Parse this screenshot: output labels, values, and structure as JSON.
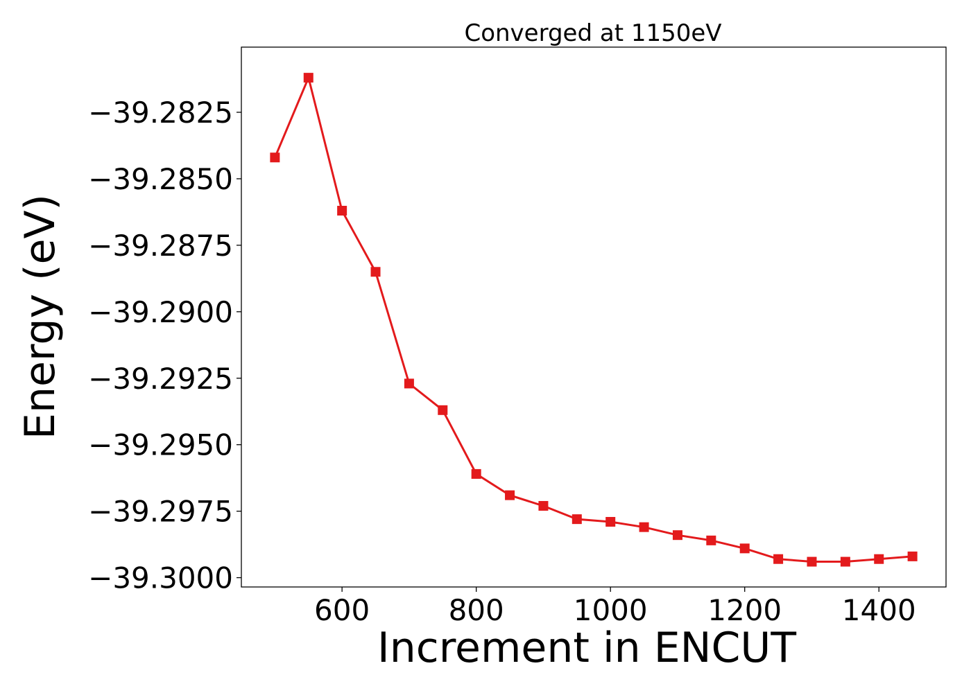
{
  "chart_data": {
    "type": "line",
    "title": "Converged at 1150eV",
    "xlabel": "Increment in ENCUT",
    "ylabel": "Energy (eV)",
    "xlim": [
      450,
      1500
    ],
    "ylim": [
      -39.30035,
      -39.28005
    ],
    "xticks": [
      600,
      800,
      1000,
      1200,
      1400
    ],
    "yticks": [
      -39.2825,
      -39.285,
      -39.2875,
      -39.29,
      -39.2925,
      -39.295,
      -39.2975,
      -39.3
    ],
    "xtick_labels": [
      "600",
      "800",
      "1000",
      "1200",
      "1400"
    ],
    "ytick_labels": [
      "−39.2825",
      "−39.2850",
      "−39.2875",
      "−39.2900",
      "−39.2925",
      "−39.2950",
      "−39.2975",
      "−39.3000"
    ],
    "grid": false,
    "series": [
      {
        "color": "#e31a1c",
        "marker": "square",
        "x": [
          500,
          550,
          600,
          650,
          700,
          750,
          800,
          850,
          900,
          950,
          1000,
          1050,
          1100,
          1150,
          1200,
          1250,
          1300,
          1350,
          1400,
          1450
        ],
        "y": [
          -39.2842,
          -39.2812,
          -39.2862,
          -39.2885,
          -39.2927,
          -39.2937,
          -39.2961,
          -39.2969,
          -39.2973,
          -39.2978,
          -39.2979,
          -39.2981,
          -39.2984,
          -39.2986,
          -39.2989,
          -39.2993,
          -39.2994,
          -39.2994,
          -39.2993,
          -39.2992
        ]
      }
    ]
  }
}
